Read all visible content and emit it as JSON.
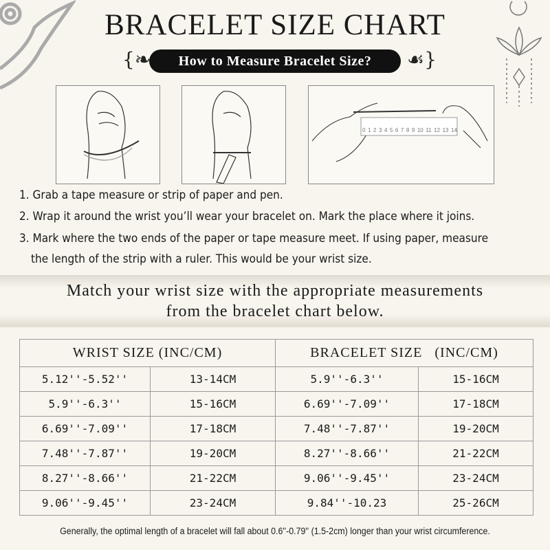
{
  "header": {
    "title": "BRACELET SIZE CHART",
    "subtitle": "How to Measure Bracelet Size?"
  },
  "ruler_labels": [
    "0",
    "1",
    "2",
    "3",
    "4",
    "5",
    "6",
    "7",
    "8",
    "9",
    "10",
    "11",
    "12",
    "13",
    "14"
  ],
  "steps": [
    "1. Grab a tape measure or strip of paper and pen.",
    "2. Wrap it around the wrist you’ll wear your bracelet on. Mark the place where it joins.",
    "3. Mark where the two ends of the paper or tape measure meet. If using paper, measure",
    "the length of the strip with a ruler. This would be your wrist size."
  ],
  "match": {
    "line1": "Match your wrist size with the appropriate measurements",
    "line2": "from the bracelet chart below."
  },
  "table": {
    "headers": [
      "WRIST SIZE (INC/CM)",
      "BRACELET SIZE   (INC/CM)"
    ],
    "rows": [
      [
        "5.12''-5.52''",
        "13-14CM",
        "5.9''-6.3''",
        "15-16CM"
      ],
      [
        "5.9''-6.3''",
        "15-16CM",
        "6.69''-7.09''",
        "17-18CM"
      ],
      [
        "6.69''-7.09''",
        "17-18CM",
        "7.48''-7.87''",
        "19-20CM"
      ],
      [
        "7.48''-7.87''",
        "19-20CM",
        "8.27''-8.66''",
        "21-22CM"
      ],
      [
        "8.27''-8.66''",
        "21-22CM",
        "9.06''-9.45''",
        "23-24CM"
      ],
      [
        "9.06''-9.45''",
        "23-24CM",
        "9.84''-10.23",
        "25-26CM"
      ]
    ]
  },
  "note": "Generally, the optimal length of a bracelet will fall about 0.6''-0.79'' (1.5-2cm) longer than your wrist circumference."
}
